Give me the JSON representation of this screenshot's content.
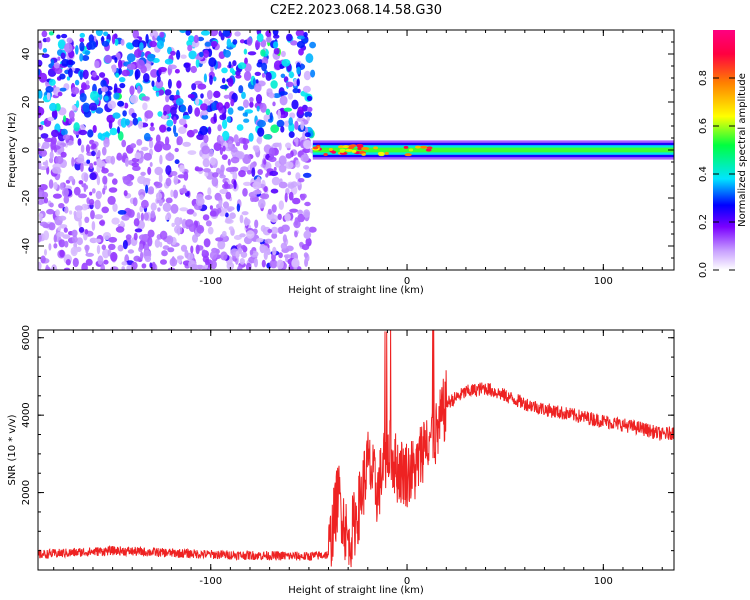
{
  "title": "C2E2.2023.068.14.58.G30",
  "chart_data": [
    {
      "type": "heatmap",
      "xlabel": "Height of straight line (km)",
      "ylabel": "Frequency (Hz)",
      "xlim": [
        -188,
        136
      ],
      "ylim": [
        -50,
        50
      ],
      "xticks": [
        -100,
        0,
        100
      ],
      "yticks": [
        -40,
        -20,
        0,
        20,
        40
      ],
      "colorbar": {
        "label": "Normalized spectral amplitude",
        "range": [
          0,
          1
        ],
        "ticks": [
          "0.0",
          "0.2",
          "0.4",
          "0.6",
          "0.8"
        ],
        "colormap": [
          "#ffffff",
          "#c8a0ff",
          "#7a00ff",
          "#0000ff",
          "#00e5ff",
          "#00ff40",
          "#ffff00",
          "#ff8000",
          "#ff0040",
          "#ff0080"
        ]
      },
      "regions": [
        {
          "x_range": [
            -188,
            -48
          ],
          "description_level": "scattered low-amplitude noise (0.05-0.2)"
        },
        {
          "x_range": [
            -48,
            136
          ],
          "center_frequency_hz": 0,
          "band_halfwidth_hz": 4,
          "peak_amplitude": 0.9
        }
      ]
    },
    {
      "type": "line",
      "xlabel": "Height of straight line (km)",
      "ylabel": "SNR (10 * v/v)",
      "xlim": [
        -188,
        136
      ],
      "ylim": [
        0,
        6200
      ],
      "xticks": [
        -100,
        0,
        100
      ],
      "yticks": [
        2000,
        4000,
        6000
      ],
      "color": "#ee2222",
      "keypoints": {
        "x": [
          -188,
          -150,
          -100,
          -50,
          -40,
          -35,
          -30,
          -25,
          -20,
          -15,
          -10,
          -5,
          0,
          5,
          10,
          15,
          20,
          30,
          40,
          50,
          60,
          70,
          80,
          90,
          100,
          110,
          120,
          130,
          136
        ],
        "y": [
          400,
          500,
          400,
          350,
          400,
          2000,
          700,
          1500,
          2800,
          2000,
          3200,
          2600,
          2500,
          2600,
          3500,
          3500,
          4300,
          4600,
          4700,
          4500,
          4300,
          4150,
          4050,
          3950,
          3850,
          3750,
          3650,
          3500,
          3550
        ]
      }
    }
  ]
}
